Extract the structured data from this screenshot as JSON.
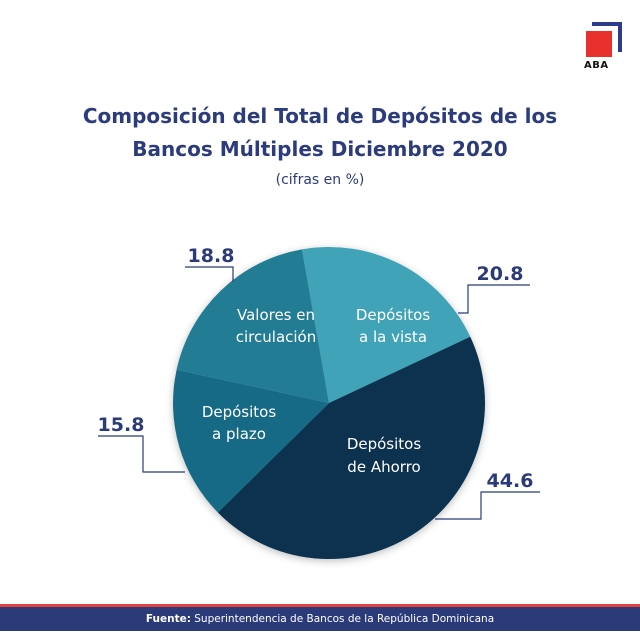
{
  "logo": {
    "text": "ABA",
    "colors": {
      "square": "#e8302d",
      "corner": "#2c3b8c"
    }
  },
  "chart_data": {
    "type": "pie",
    "title": "Composición del Total de Depósitos de los Bancos Múltiples Diciembre 2020",
    "title_lines": [
      "Composición del Total de Depósitos de los",
      "Bancos Múltiples Diciembre 2020"
    ],
    "subtitle": "(cifras en %)",
    "slices": [
      {
        "label_lines": [
          "Depósitos",
          "a la vista"
        ],
        "value": 20.8,
        "value_label": "20.8",
        "color": "#3fa3b8"
      },
      {
        "label_lines": [
          "Depósitos",
          "de Ahorro"
        ],
        "value": 44.6,
        "value_label": "44.6",
        "color": "#07324f"
      },
      {
        "label_lines": [
          "Depósitos",
          "a plazo"
        ],
        "value": 15.8,
        "value_label": "15.8",
        "color": "#196a85"
      },
      {
        "label_lines": [
          "Valores en",
          "circulación"
        ],
        "value": 18.8,
        "value_label": "18.8",
        "color": "#217b93"
      }
    ]
  },
  "footer": {
    "source_label": "Fuente:",
    "source_text": "Superintendencia de Bancos de la República Dominicana"
  }
}
